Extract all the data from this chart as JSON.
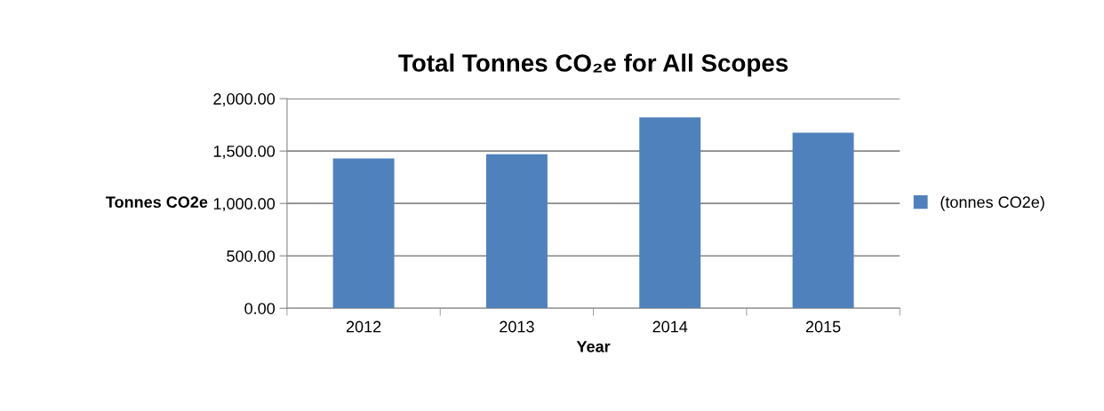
{
  "chart_data": {
    "type": "bar",
    "title": "Total Tonnes CO₂e for All Scopes",
    "xlabel": "Year",
    "ylabel": "Tonnes CO2e",
    "categories": [
      "2012",
      "2013",
      "2014",
      "2015"
    ],
    "series": [
      {
        "name": "(tonnes CO2e)",
        "color": "#4f81bd",
        "values": [
          1430,
          1470,
          1820,
          1675
        ]
      }
    ],
    "ylim": [
      0,
      2000
    ],
    "yticks": [
      {
        "value": 0,
        "label": "0.00"
      },
      {
        "value": 500,
        "label": "500.00"
      },
      {
        "value": 1000,
        "label": "1,000.00"
      },
      {
        "value": 1500,
        "label": "1,500.00"
      },
      {
        "value": 2000,
        "label": "2,000.00"
      }
    ],
    "grid": "y",
    "legend": "right"
  }
}
